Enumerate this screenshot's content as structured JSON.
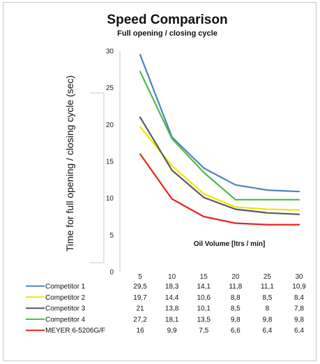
{
  "chart_data": {
    "type": "line",
    "title": "Speed Comparison",
    "subtitle": "Full opening / closing cycle",
    "ylabel": "Time for full opening / closing cycle (sec)",
    "xlabel": "Oil Volume [ltrs / min]",
    "x": [
      5,
      10,
      15,
      20,
      25,
      30
    ],
    "x_labels": [
      "5",
      "10",
      "15",
      "20",
      "25",
      "30"
    ],
    "ylim": [
      0,
      30
    ],
    "yticks": [
      "0",
      "5",
      "10",
      "15",
      "20",
      "25",
      "30"
    ],
    "grid": false,
    "series": [
      {
        "name": "Competitor 1",
        "color": "#4f81bd",
        "values": [
          29.5,
          18.3,
          14.1,
          11.8,
          11.1,
          10.9
        ],
        "labels": [
          "29,5",
          "18,3",
          "14,1",
          "11,8",
          "11,1",
          "10,9"
        ]
      },
      {
        "name": "Competitor 2",
        "color": "#f2e400",
        "values": [
          19.7,
          14.4,
          10.6,
          8.8,
          8.5,
          8.4
        ],
        "labels": [
          "19,7",
          "14,4",
          "10,6",
          "8,8",
          "8,5",
          "8,4"
        ]
      },
      {
        "name": "Competitor 3",
        "color": "#595959",
        "values": [
          21,
          13.8,
          10.1,
          8.5,
          8,
          7.8
        ],
        "labels": [
          "21",
          "13,8",
          "10,1",
          "8,5",
          "8",
          "7,8"
        ]
      },
      {
        "name": "Competitor 4",
        "color": "#4fb848",
        "values": [
          27.2,
          18.1,
          13.5,
          9.8,
          9.8,
          9.8
        ],
        "labels": [
          "27,2",
          "18,1",
          "13,5",
          "9,8",
          "9,8",
          "9,8"
        ]
      },
      {
        "name": "MEYER 6-5206G/F",
        "color": "#e8231d",
        "values": [
          16,
          9.9,
          7.5,
          6.6,
          6.4,
          6.4
        ],
        "labels": [
          "16",
          "9,9",
          "7,5",
          "6,6",
          "6,4",
          "6,4"
        ]
      }
    ]
  }
}
